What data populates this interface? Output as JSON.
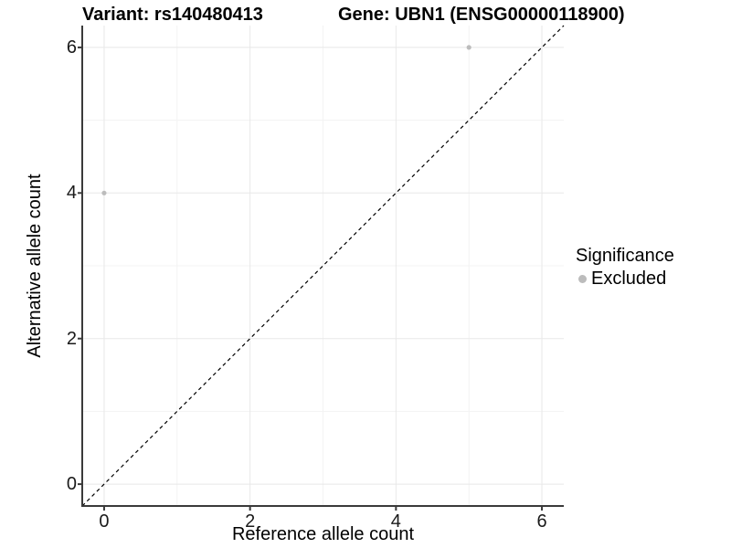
{
  "header": {
    "variant_title": "Variant: rs140480413",
    "gene_title": "Gene: UBN1 (ENSG00000118900)"
  },
  "chart_data": {
    "type": "scatter",
    "title": "Variant: rs140480413   Gene: UBN1 (ENSG00000118900)",
    "xlabel": "Reference allele count",
    "ylabel": "Alternative allele count",
    "xlim": [
      -0.3,
      6.3
    ],
    "ylim": [
      -0.3,
      6.3
    ],
    "x_ticks": [
      0,
      2,
      4,
      6
    ],
    "y_ticks": [
      0,
      2,
      4,
      6
    ],
    "x_minor_ticks": [
      1,
      3,
      5
    ],
    "y_minor_ticks": [
      1,
      3,
      5
    ],
    "grid": true,
    "series": [
      {
        "name": "Excluded",
        "points": [
          {
            "x": 0,
            "y": 4
          },
          {
            "x": 5,
            "y": 6
          }
        ]
      }
    ],
    "reference_line": {
      "type": "identity y=x",
      "style": "dashed",
      "from": [
        -0.3,
        -0.3
      ],
      "to": [
        6.3,
        6.3
      ]
    },
    "legend": {
      "position": "right",
      "title": "Significance",
      "items": [
        {
          "label": "Excluded"
        }
      ]
    }
  },
  "colors": {
    "background": "#ffffff",
    "point": "#bcbcbc",
    "legend_key": "#bcbcbc",
    "grid_major": "#e8e8e8",
    "grid_minor": "#f3f3f3",
    "axis_line": "#3a3a3a",
    "tick_mark": "#3a3a3a",
    "reference_line": "#000000",
    "text": "#000000"
  }
}
